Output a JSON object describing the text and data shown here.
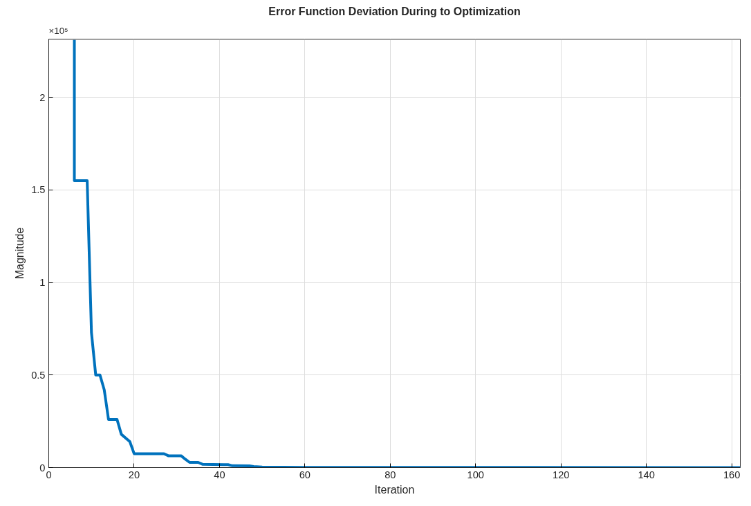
{
  "chart_data": {
    "type": "line",
    "title": "Error Function Deviation During to Optimization",
    "xlabel": "Iteration",
    "ylabel": "Magnitude",
    "annotations": [
      "×10⁵"
    ],
    "x": [
      6,
      6,
      9,
      10,
      11,
      12,
      13,
      14,
      16,
      17,
      18,
      19,
      20,
      27,
      28,
      31,
      32,
      33,
      35,
      36,
      41,
      42,
      43,
      47,
      48,
      50,
      60,
      162
    ],
    "series": [
      {
        "color": "#0072bd",
        "values": [
          2.31,
          1.55,
          1.55,
          0.73,
          0.5,
          0.5,
          0.42,
          0.26,
          0.26,
          0.18,
          0.16,
          0.14,
          0.075,
          0.075,
          0.064,
          0.064,
          0.045,
          0.028,
          0.028,
          0.018,
          0.016,
          0.016,
          0.01,
          0.009,
          0.006,
          0.003,
          0.001,
          0
        ]
      }
    ],
    "xlim": [
      0,
      162
    ],
    "ylim": [
      0,
      2.315
    ],
    "xticks": [
      0,
      20,
      40,
      60,
      80,
      100,
      120,
      140,
      160
    ],
    "yticks": [
      0,
      0.5,
      1,
      1.5,
      2
    ],
    "grid": true,
    "marker": "none",
    "line_style": "solid"
  }
}
